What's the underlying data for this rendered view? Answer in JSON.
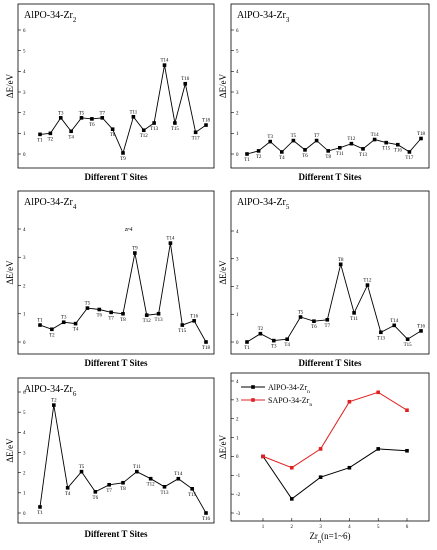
{
  "chart_data": [
    {
      "type": "line",
      "title": "AlPO-34-Zr",
      "title_sub": "2",
      "ylabel": "ΔE/eV",
      "xlabel": "Different T Sites",
      "ylim": [
        0,
        6
      ],
      "yticks": [
        0,
        1,
        2,
        3,
        4,
        5,
        6
      ],
      "points": [
        {
          "label": "T1",
          "value": 0.95
        },
        {
          "label": "T2",
          "value": 1.0
        },
        {
          "label": "T3",
          "value": 1.75
        },
        {
          "label": "T4",
          "value": 1.1
        },
        {
          "label": "T5",
          "value": 1.75
        },
        {
          "label": "T6",
          "value": 1.7
        },
        {
          "label": "T7",
          "value": 1.75
        },
        {
          "label": "T8",
          "value": 1.2
        },
        {
          "label": "T9",
          "value": 0.05
        },
        {
          "label": "T11",
          "value": 1.8
        },
        {
          "label": "T12",
          "value": 1.15
        },
        {
          "label": "T13",
          "value": 1.5
        },
        {
          "label": "T14",
          "value": 4.3
        },
        {
          "label": "T15",
          "value": 1.5
        },
        {
          "label": "T16",
          "value": 3.4
        },
        {
          "label": "T17",
          "value": 1.05
        },
        {
          "label": "T18",
          "value": 1.4
        }
      ]
    },
    {
      "type": "line",
      "title": "AlPO-34-Zr",
      "title_sub": "3",
      "ylabel": "ΔE/eV",
      "xlabel": "Different T Sites",
      "ylim": [
        0,
        6
      ],
      "yticks": [
        0,
        1,
        2,
        3,
        4,
        5,
        6
      ],
      "points": [
        {
          "label": "T1",
          "value": 0.0
        },
        {
          "label": "T2",
          "value": 0.15
        },
        {
          "label": "T3",
          "value": 0.6
        },
        {
          "label": "T4",
          "value": 0.1
        },
        {
          "label": "T5",
          "value": 0.65
        },
        {
          "label": "T6",
          "value": 0.2
        },
        {
          "label": "T7",
          "value": 0.65
        },
        {
          "label": "T8",
          "value": 0.15
        },
        {
          "label": "T11",
          "value": 0.3
        },
        {
          "label": "T12",
          "value": 0.5
        },
        {
          "label": "T13",
          "value": 0.25
        },
        {
          "label": "T14",
          "value": 0.7
        },
        {
          "label": "T15",
          "value": 0.55
        },
        {
          "label": "T16",
          "value": 0.45
        },
        {
          "label": "T17",
          "value": 0.1
        },
        {
          "label": "T18",
          "value": 0.75
        }
      ]
    },
    {
      "type": "line",
      "title": "AlPO-34-Zr",
      "title_sub": "4",
      "ylabel": "ΔE/eV",
      "xlabel": "Different T Sites",
      "annotation": "zr4",
      "ylim": [
        0,
        4
      ],
      "yticks": [
        0,
        1,
        2,
        3,
        4
      ],
      "points": [
        {
          "label": "T1",
          "value": 0.6
        },
        {
          "label": "T2",
          "value": 0.45
        },
        {
          "label": "T3",
          "value": 0.7
        },
        {
          "label": "T4",
          "value": 0.65
        },
        {
          "label": "T5",
          "value": 1.2
        },
        {
          "label": "T6",
          "value": 1.15
        },
        {
          "label": "T7",
          "value": 1.05
        },
        {
          "label": "T8",
          "value": 1.0
        },
        {
          "label": "T9",
          "value": 3.15
        },
        {
          "label": "T12",
          "value": 0.95
        },
        {
          "label": "T13",
          "value": 1.0
        },
        {
          "label": "T14",
          "value": 3.5
        },
        {
          "label": "T15",
          "value": 0.6
        },
        {
          "label": "T16",
          "value": 0.75
        },
        {
          "label": "T18",
          "value": 0.0
        }
      ]
    },
    {
      "type": "line",
      "title": "AlPO-34-Zr",
      "title_sub": "5",
      "ylabel": "ΔE/eV",
      "xlabel": "Different T Sites",
      "ylim": [
        0,
        4
      ],
      "yticks": [
        0,
        1,
        2,
        3,
        4
      ],
      "points": [
        {
          "label": "T1",
          "value": 0.0
        },
        {
          "label": "T2",
          "value": 0.3
        },
        {
          "label": "T3",
          "value": 0.05
        },
        {
          "label": "T4",
          "value": 0.1
        },
        {
          "label": "T5",
          "value": 0.9
        },
        {
          "label": "T6",
          "value": 0.75
        },
        {
          "label": "T7",
          "value": 0.8
        },
        {
          "label": "T8",
          "value": 2.8
        },
        {
          "label": "T11",
          "value": 1.05
        },
        {
          "label": "T12",
          "value": 2.05
        },
        {
          "label": "T13",
          "value": 0.35
        },
        {
          "label": "T14",
          "value": 0.6
        },
        {
          "label": "T15",
          "value": 0.1
        },
        {
          "label": "T16",
          "value": 0.4
        }
      ]
    },
    {
      "type": "line",
      "title": "AlPO-34-Zr",
      "title_sub": "6",
      "ylabel": "ΔE/eV",
      "xlabel": "Different T Sites",
      "ylim": [
        0,
        6
      ],
      "yticks": [
        0,
        1,
        2,
        3,
        4,
        5,
        6
      ],
      "points": [
        {
          "label": "T1",
          "value": 0.3
        },
        {
          "label": "T2",
          "value": 5.35
        },
        {
          "label": "T4",
          "value": 1.25
        },
        {
          "label": "T5",
          "value": 2.05
        },
        {
          "label": "T6",
          "value": 1.05
        },
        {
          "label": "T7",
          "value": 1.4
        },
        {
          "label": "T8",
          "value": 1.5
        },
        {
          "label": "T11",
          "value": 2.05
        },
        {
          "label": "T12",
          "value": 1.7
        },
        {
          "label": "T13",
          "value": 1.3
        },
        {
          "label": "T14",
          "value": 1.7
        },
        {
          "label": "T15",
          "value": 1.2
        },
        {
          "label": "T16",
          "value": 0.0
        }
      ]
    },
    {
      "type": "line",
      "ylabel": "ΔE/eV",
      "xlabel": "Zr",
      "xlabel_sub": "n",
      "xlabel_tail": "(n=1~6)",
      "ylim": [
        -3,
        4
      ],
      "yticks": [
        -3,
        -2,
        -1,
        0,
        1,
        2,
        3,
        4
      ],
      "categories": [
        "1",
        "2",
        "3",
        "4",
        "5",
        "6"
      ],
      "legend": "top-left",
      "series": [
        {
          "name": "AlPO-34-Zr",
          "name_sub": "n",
          "color": "#000000",
          "values": [
            0.0,
            -2.25,
            -1.1,
            -0.6,
            0.4,
            0.3
          ]
        },
        {
          "name": "SAPO-34-Zr",
          "name_sub": "n",
          "color": "#e02020",
          "values": [
            0.0,
            -0.6,
            0.4,
            2.9,
            3.4,
            2.45
          ]
        }
      ]
    }
  ]
}
